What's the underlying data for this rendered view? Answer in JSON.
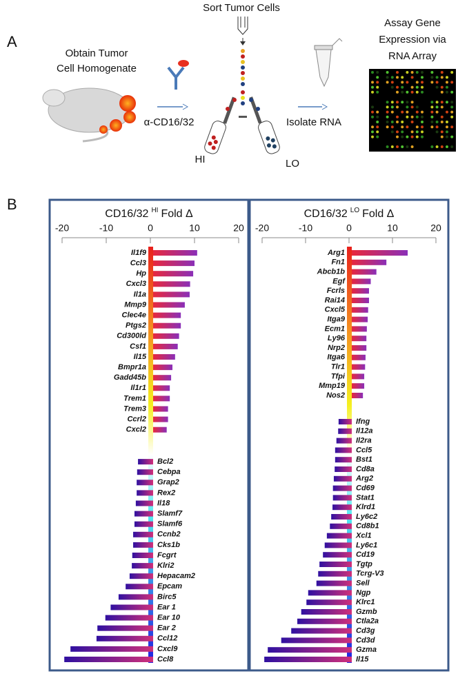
{
  "panel_a": {
    "label": "A",
    "step1": [
      "Obtain Tumor",
      "Cell Homogenate"
    ],
    "step2": "Sort Tumor Cells",
    "antibody": "α-CD16/32",
    "hi": "HI",
    "lo": "LO",
    "step3": "Isolate RNA",
    "step4": [
      "Assay Gene",
      "Expression via",
      "RNA Array"
    ]
  },
  "panel_b": {
    "label": "B"
  },
  "chart_data": [
    {
      "type": "bar",
      "orientation": "horizontal",
      "title": "CD16/32",
      "title_superscript": "HI",
      "title_suffix": "Fold Δ",
      "categories": [
        "Il1f9",
        "Ccl3",
        "Hp",
        "Cxcl3",
        "Il1a",
        "Mmp9",
        "Clec4e",
        "Ptgs2",
        "Cd300ld",
        "Csf1",
        "Il15",
        "Bmpr1a",
        "Gadd45b",
        "Il1r1",
        "Trem1",
        "Trem3",
        "Ccrl2",
        "Cxcl2",
        "Bcl2",
        "Cebpa",
        "Grap2",
        "Rex2",
        "Il18",
        "Slamf7",
        "Slamf6",
        "Ccnb2",
        "Cks1b",
        "Fcgrt",
        "Klri2",
        "Hepacam2",
        "Epcam",
        "Birc5",
        "Ear 1",
        "Ear 10",
        "Ear 2",
        "Ccl12",
        "Cxcl9",
        "Ccl8"
      ],
      "values": [
        10.6,
        10,
        9.7,
        9,
        8.9,
        7.8,
        6.9,
        6.9,
        6.5,
        6.2,
        5.6,
        5,
        4.7,
        4.4,
        4.4,
        4,
        4,
        3.7,
        -2.8,
        -3,
        -3.1,
        -3.1,
        -3.3,
        -3.6,
        -3.6,
        -3.9,
        -3.9,
        -4.1,
        -4.2,
        -4.7,
        -5.6,
        -7.2,
        -9,
        -10.2,
        -12,
        -12.2,
        -18.1,
        -19.5
      ],
      "xlim": [
        -20,
        20
      ],
      "xticks": [
        -20,
        -10,
        0,
        10,
        20
      ]
    },
    {
      "type": "bar",
      "orientation": "horizontal",
      "title": "CD16/32",
      "title_superscript": "LO",
      "title_suffix": "Fold Δ",
      "categories": [
        "Arg1",
        "Fn1",
        "Abcb1b",
        "Egf",
        "Fcrls",
        "Rai14",
        "Cxcl5",
        "Itga9",
        "Ecm1",
        "Ly96",
        "Nrp2",
        "Itga6",
        "Tlr1",
        "Tfpi",
        "Mmp19",
        "Nos2",
        "Ifng",
        "Il12a",
        "Il2ra",
        "Ccl5",
        "Bst1",
        "Cd8a",
        "Arg2",
        "Cd69",
        "Stat1",
        "Klrd1",
        "Ly6c2",
        "Cd8b1",
        "Xcl1",
        "Ly6c1",
        "Cd19",
        "Tgtp",
        "Tcrg-V3",
        "Sell",
        "Ngp",
        "Klrc1",
        "Gzmb",
        "Ctla2a",
        "Cd3g",
        "Cd3d",
        "Gzma",
        "Il15"
      ],
      "values": [
        13.5,
        8.6,
        6.3,
        5,
        4.6,
        4.6,
        4.4,
        4.3,
        4.1,
        4,
        4,
        3.8,
        3.7,
        3.5,
        3.5,
        3.2,
        -2.4,
        -2.5,
        -2.9,
        -3.2,
        -3.2,
        -3.3,
        -3.5,
        -3.7,
        -3.7,
        -3.8,
        -4.1,
        -4.4,
        -5.1,
        -5.6,
        -6,
        -6.8,
        -7.1,
        -7.5,
        -9.4,
        -9.8,
        -11,
        -11.9,
        -13.3,
        -15.6,
        -18.7,
        -19.5
      ],
      "xlim": [
        -20,
        20
      ],
      "xticks": [
        -20,
        -10,
        0,
        10,
        20
      ]
    }
  ]
}
